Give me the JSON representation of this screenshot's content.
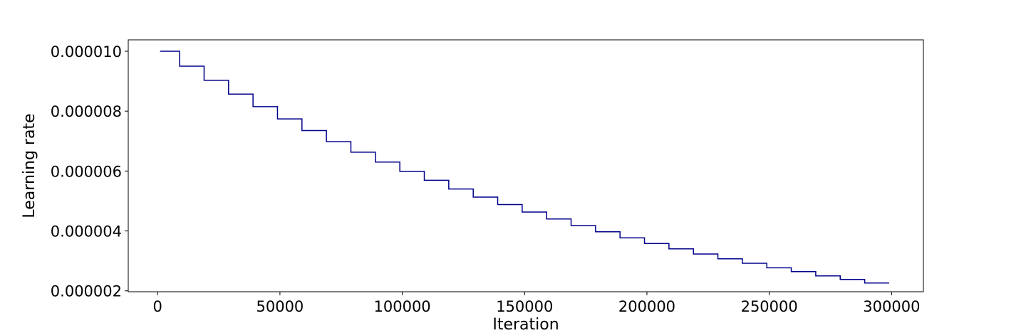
{
  "chart_data": {
    "type": "line",
    "xlabel": "Iteration",
    "ylabel": "Learning rate",
    "xlim": [
      -12000,
      313000
    ],
    "ylim": [
      1.97e-06,
      1.038e-05
    ],
    "x_ticks": [
      0,
      50000,
      100000,
      150000,
      200000,
      250000,
      300000
    ],
    "x_tick_labels": [
      "0",
      "50000",
      "100000",
      "150000",
      "200000",
      "250000",
      "300000"
    ],
    "y_ticks": [
      2e-06,
      4e-06,
      6e-06,
      8e-06,
      1e-05
    ],
    "y_tick_labels": [
      "0.000002",
      "0.000004",
      "0.000006",
      "0.000008",
      "0.000010"
    ],
    "grid": false,
    "line_color": "#00008b",
    "step": "post",
    "series": [
      {
        "x": [
          1000,
          9000,
          19000,
          29000,
          39000,
          49000,
          59000,
          69000,
          79000,
          89000,
          99000,
          109000,
          119000,
          129000,
          139000,
          149000,
          159000,
          169000,
          179000,
          189000,
          199000,
          209000,
          219000,
          229000,
          239000,
          249000,
          259000,
          269000,
          279000,
          289000,
          299000
        ],
        "values": [
          1e-05,
          9.5e-06,
          9.03e-06,
          8.57e-06,
          8.15e-06,
          7.74e-06,
          7.35e-06,
          6.98e-06,
          6.63e-06,
          6.3e-06,
          5.99e-06,
          5.69e-06,
          5.4e-06,
          5.13e-06,
          4.88e-06,
          4.63e-06,
          4.4e-06,
          4.18e-06,
          3.97e-06,
          3.77e-06,
          3.58e-06,
          3.4e-06,
          3.23e-06,
          3.07e-06,
          2.92e-06,
          2.77e-06,
          2.64e-06,
          2.5e-06,
          2.38e-06,
          2.26e-06,
          2.26e-06
        ]
      }
    ]
  }
}
